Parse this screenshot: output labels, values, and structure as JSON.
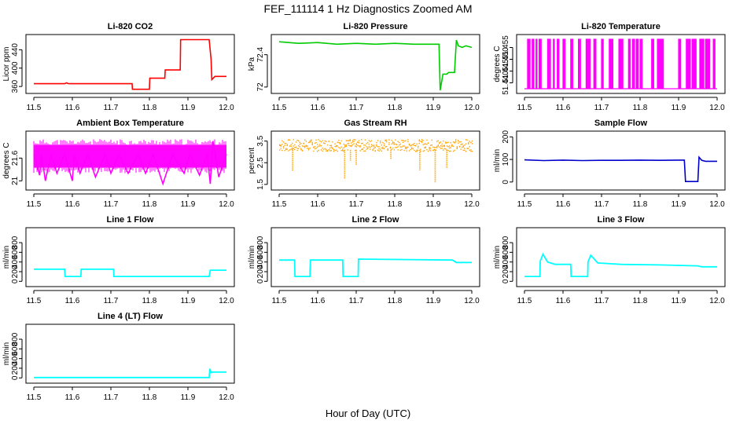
{
  "title": "FEF_111114  1 Hz Diagnostics Zoomed AM",
  "xlabel": "Hour of Day (UTC)",
  "chart_data": [
    {
      "type": "line",
      "title": "Li-820 CO2",
      "ylabel": "Licor ppm",
      "color": "#ff0000",
      "xlim": [
        11.5,
        12.0
      ],
      "ylim": [
        350,
        468
      ],
      "xticks": [
        "11.5",
        "11.6",
        "11.7",
        "11.8",
        "11.9",
        "12.0"
      ],
      "yticks": [
        360,
        400,
        440
      ],
      "x": [
        11.5,
        11.58,
        11.585,
        11.59,
        11.755,
        11.756,
        11.8,
        11.801,
        11.84,
        11.841,
        11.88,
        11.881,
        11.955,
        11.96,
        11.962,
        11.97,
        11.995,
        12.0
      ],
      "y": [
        366,
        366,
        368,
        366,
        366,
        354,
        354,
        378,
        378,
        396,
        396,
        462,
        462,
        420,
        375,
        382,
        382,
        382
      ]
    },
    {
      "type": "line",
      "title": "Li-820 Pressure",
      "ylabel": "kPa",
      "color": "#00cc00",
      "xlim": [
        11.5,
        12.0
      ],
      "ylim": [
        71.95,
        72.62
      ],
      "xticks": [
        "11.5",
        "11.6",
        "11.7",
        "11.8",
        "11.9",
        "12.0"
      ],
      "yticks": [
        72.0,
        72.4
      ],
      "x": [
        11.5,
        11.55,
        11.6,
        11.65,
        11.7,
        11.75,
        11.8,
        11.85,
        11.9,
        11.915,
        11.918,
        11.925,
        11.935,
        11.94,
        11.955,
        11.96,
        11.965,
        11.975,
        11.985,
        12.0
      ],
      "y": [
        72.56,
        72.54,
        72.55,
        72.53,
        72.54,
        72.53,
        72.54,
        72.53,
        72.53,
        72.53,
        71.96,
        72.16,
        72.16,
        72.18,
        72.18,
        72.58,
        72.51,
        72.49,
        72.51,
        72.49
      ]
    },
    {
      "type": "line",
      "title": "Li-820 Temperature",
      "ylabel": "degrees C",
      "color": "#ff00ff",
      "xlim": [
        11.5,
        12.0
      ],
      "ylim": [
        51.4365,
        51.4595
      ],
      "xticks": [
        "11.5",
        "11.6",
        "11.7",
        "11.8",
        "11.9",
        "12.0"
      ],
      "yticks": [
        "51.440",
        "51.445",
        "51.450",
        "51.455"
      ],
      "low": 51.4375,
      "high": 51.4585,
      "toggle_x": [
        11.508,
        11.512,
        11.52,
        11.522,
        11.53,
        11.538,
        11.541,
        11.56,
        11.565,
        11.575,
        11.585,
        11.587,
        11.6,
        11.603,
        11.62,
        11.623,
        11.64,
        11.643,
        11.66,
        11.663,
        11.665,
        11.668,
        11.68,
        11.683,
        11.7,
        11.702,
        11.72,
        11.722,
        11.725,
        11.727,
        11.745,
        11.748,
        11.75,
        11.753,
        11.77,
        11.772,
        11.78,
        11.783,
        11.79,
        11.793,
        11.8,
        11.803,
        11.83,
        11.833,
        11.845,
        11.847,
        11.85,
        11.853,
        11.855,
        11.858,
        11.9,
        11.903,
        11.92,
        11.922,
        11.925,
        11.928,
        11.935,
        11.938,
        11.94,
        11.943,
        11.955,
        11.957,
        11.96,
        11.963,
        11.97,
        11.972,
        11.975,
        11.978,
        11.99,
        11.992
      ]
    },
    {
      "type": "line",
      "title": "Ambient Box Temperature",
      "ylabel": "degrees C",
      "color": "#ff00ff",
      "xlim": [
        11.5,
        12.0
      ],
      "ylim": [
        20.82,
        22.25
      ],
      "xticks": [
        "11.5",
        "11.6",
        "11.7",
        "11.8",
        "11.9",
        "12.0"
      ],
      "yticks": [
        21.0,
        21.6
      ],
      "band": [
        21.35,
        21.95
      ],
      "x": [
        11.5,
        11.515,
        11.52,
        11.53,
        11.545,
        11.56,
        11.58,
        11.6,
        11.605,
        11.62,
        11.64,
        11.66,
        11.685,
        11.7,
        11.72,
        11.745,
        11.77,
        11.79,
        11.81,
        11.835,
        11.86,
        11.89,
        11.905,
        11.93,
        11.95,
        11.958,
        11.965,
        11.98,
        12.0
      ],
      "y": [
        21.7,
        21.15,
        21.7,
        21.0,
        21.7,
        21.2,
        21.7,
        21.0,
        21.7,
        21.2,
        21.7,
        21.1,
        21.7,
        21.2,
        21.7,
        21.2,
        21.7,
        21.2,
        21.7,
        20.92,
        21.7,
        21.2,
        21.7,
        21.15,
        21.7,
        20.92,
        22.05,
        21.1,
        21.7
      ]
    },
    {
      "type": "scatter",
      "title": "Gas Stream RH",
      "ylabel": "percent",
      "color": "#ffa500",
      "xlim": [
        11.5,
        12.0
      ],
      "ylim": [
        1.35,
        3.85
      ],
      "xticks": [
        "11.5",
        "11.6",
        "11.7",
        "11.8",
        "11.9",
        "12.0"
      ],
      "yticks": [
        1.5,
        2.5,
        3.5
      ],
      "band": [
        3.05,
        3.6
      ],
      "spike_x": [
        11.535,
        11.67,
        11.685,
        11.7,
        11.79,
        11.865,
        11.905,
        11.935
      ],
      "spike_y": [
        2.1,
        1.75,
        2.6,
        2.4,
        2.65,
        2.15,
        1.6,
        2.25
      ]
    },
    {
      "type": "line",
      "title": "Sample Flow",
      "ylabel": "ml/min",
      "color": "#0000cc",
      "xlim": [
        11.5,
        12.0
      ],
      "ylim": [
        -25,
        215
      ],
      "xticks": [
        "11.5",
        "11.6",
        "11.7",
        "11.8",
        "11.9",
        "12.0"
      ],
      "yticks": [
        0,
        100,
        200
      ],
      "x": [
        11.5,
        11.55,
        11.6,
        11.65,
        11.7,
        11.75,
        11.8,
        11.85,
        11.9,
        11.915,
        11.918,
        11.95,
        11.953,
        11.96,
        11.97,
        11.985,
        12.0
      ],
      "y": [
        98,
        95,
        97,
        95,
        96,
        96,
        97,
        96,
        97,
        97,
        2,
        2,
        110,
        96,
        92,
        92,
        92
      ]
    },
    {
      "type": "line",
      "title": "Line 1 Flow",
      "ylabel": "ml/min",
      "color": "#00ffff",
      "xlim": [
        11.5,
        12.0
      ],
      "ylim": [
        -60,
        1060
      ],
      "xticks": [
        "11.5",
        "11.6",
        "11.7",
        "11.8",
        "11.9",
        "12.0"
      ],
      "yticks": [
        0,
        200,
        400,
        600,
        800
      ],
      "x": [
        11.5,
        11.58,
        11.581,
        11.622,
        11.623,
        11.707,
        11.708,
        11.955,
        11.958,
        11.97,
        12.0
      ],
      "y": [
        250,
        250,
        100,
        100,
        250,
        250,
        100,
        100,
        230,
        230,
        230
      ]
    },
    {
      "type": "line",
      "title": "Line 2 Flow",
      "ylabel": "ml/min",
      "color": "#00ffff",
      "xlim": [
        11.5,
        12.0
      ],
      "ylim": [
        -60,
        1060
      ],
      "xticks": [
        "11.5",
        "11.6",
        "11.7",
        "11.8",
        "11.9",
        "12.0"
      ],
      "yticks": [
        0,
        200,
        400,
        600,
        800
      ],
      "x": [
        11.5,
        11.54,
        11.541,
        11.58,
        11.581,
        11.665,
        11.666,
        11.705,
        11.706,
        11.95,
        11.96,
        12.0
      ],
      "y": [
        440,
        440,
        100,
        100,
        440,
        440,
        100,
        100,
        460,
        440,
        390,
        390
      ]
    },
    {
      "type": "line",
      "title": "Line 3 Flow",
      "ylabel": "ml/min",
      "color": "#00ffff",
      "xlim": [
        11.5,
        12.0
      ],
      "ylim": [
        -60,
        1060
      ],
      "xticks": [
        "11.5",
        "11.6",
        "11.7",
        "11.8",
        "11.9",
        "12.0"
      ],
      "yticks": [
        0,
        200,
        400,
        600,
        800
      ],
      "x": [
        11.5,
        11.54,
        11.541,
        11.548,
        11.56,
        11.58,
        11.62,
        11.621,
        11.664,
        11.665,
        11.672,
        11.69,
        11.75,
        11.85,
        11.95,
        11.96,
        12.0
      ],
      "y": [
        100,
        100,
        420,
        560,
        400,
        350,
        350,
        100,
        100,
        400,
        540,
        380,
        350,
        340,
        320,
        300,
        300
      ]
    },
    {
      "type": "line",
      "title": "Line 4 (LT) Flow",
      "ylabel": "ml/min",
      "color": "#00ffff",
      "xlim": [
        11.5,
        12.0
      ],
      "ylim": [
        -60,
        1060
      ],
      "xticks": [
        "11.5",
        "11.6",
        "11.7",
        "11.8",
        "11.9",
        "12.0"
      ],
      "yticks": [
        0,
        200,
        400,
        600,
        800
      ],
      "x": [
        11.5,
        11.6,
        11.7,
        11.8,
        11.9,
        11.955,
        11.957,
        11.96,
        11.965,
        12.0
      ],
      "y": [
        8,
        8,
        8,
        8,
        8,
        8,
        190,
        110,
        120,
        120
      ]
    }
  ]
}
